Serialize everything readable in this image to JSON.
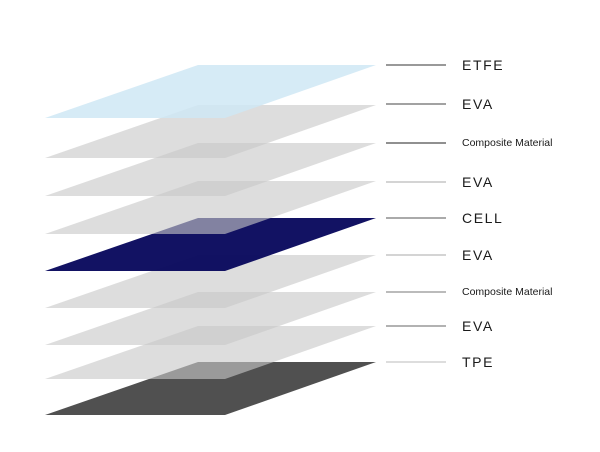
{
  "diagram": {
    "layers": [
      {
        "label": "ETFE",
        "fill": "#cfe8f5",
        "opacity": 0.85,
        "leader_color": "#333333"
      },
      {
        "label": "EVA",
        "fill": "#c8c8c8",
        "opacity": 0.62,
        "leader_color": "#444444"
      },
      {
        "label": "Composite Material",
        "fill": "#c8c8c8",
        "opacity": 0.62,
        "leader_color": "#222222"
      },
      {
        "label": "EVA",
        "fill": "#c8c8c8",
        "opacity": 0.62,
        "leader_color": "#aaaaaa"
      },
      {
        "label": "CELL",
        "fill": "#0a0a5e",
        "opacity": 0.97,
        "leader_color": "#555555"
      },
      {
        "label": "EVA",
        "fill": "#c8c8c8",
        "opacity": 0.62,
        "leader_color": "#aaaaaa"
      },
      {
        "label": "Composite Material",
        "fill": "#c8c8c8",
        "opacity": 0.62,
        "leader_color": "#777777"
      },
      {
        "label": "EVA",
        "fill": "#c8c8c8",
        "opacity": 0.62,
        "leader_color": "#666666"
      },
      {
        "label": "TPE",
        "fill": "#474747",
        "opacity": 0.95,
        "leader_color": "#bbbbbb"
      }
    ]
  }
}
